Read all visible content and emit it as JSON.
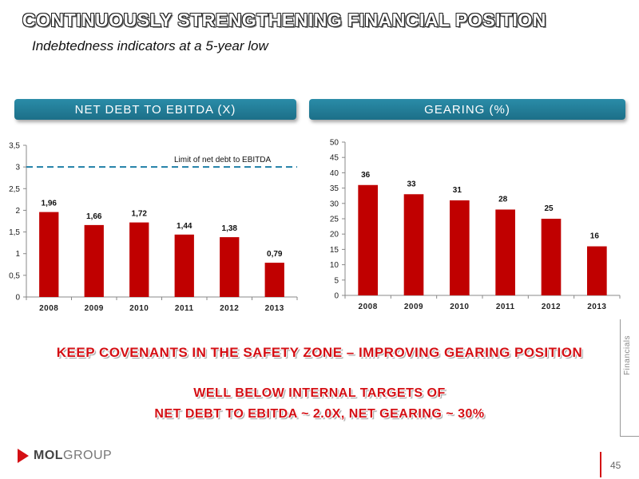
{
  "slide": {
    "title": "CONTINUOUSLY STRENGTHENING FINANCIAL POSITION",
    "subtitle": "Indebtedness indicators at a 5-year low",
    "left_header": "NET DEBT TO EBITDA (X)",
    "right_header": "GEARING (%)",
    "message_1": "KEEP COVENANTS IN THE SAFETY ZONE – IMPROVING GEARING POSITION",
    "message_2": "WELL BELOW INTERNAL TARGETS OF",
    "message_3": "NET DEBT TO EBITDA ~ 2.0X,  NET GEARING ~ 30%",
    "side_label": "Financials",
    "logo_part1": "MOL",
    "logo_part2": "GROUP",
    "page_number": "45"
  },
  "colors": {
    "bar": "#c00000",
    "limit_line": "#1f7fa6",
    "header_bg": "#1c7d99"
  },
  "chart_data": [
    {
      "type": "bar",
      "title": "NET DEBT TO EBITDA (X)",
      "categories": [
        "2008",
        "2009",
        "2010",
        "2011",
        "2012",
        "2013"
      ],
      "values": [
        1.96,
        1.66,
        1.72,
        1.44,
        1.38,
        0.79
      ],
      "value_labels": [
        "1,96",
        "1,66",
        "1,72",
        "1,44",
        "1,38",
        "0,79"
      ],
      "ylim": [
        0,
        3.5
      ],
      "yticks": [
        0,
        0.5,
        1,
        1.5,
        2,
        2.5,
        3,
        3.5
      ],
      "ytick_labels": [
        "0",
        "0,5",
        "1",
        "1,5",
        "2",
        "2,5",
        "3",
        "3,5"
      ],
      "reference_line": {
        "value": 3,
        "label": "Limit of net debt to EBITDA",
        "style": "dashed"
      },
      "grid": false
    },
    {
      "type": "bar",
      "title": "GEARING (%)",
      "categories": [
        "2008",
        "2009",
        "2010",
        "2011",
        "2012",
        "2013"
      ],
      "values": [
        36,
        33,
        31,
        28,
        25,
        16
      ],
      "value_labels": [
        "36",
        "33",
        "31",
        "28",
        "25",
        "16"
      ],
      "ylim": [
        0,
        50
      ],
      "yticks": [
        0,
        5,
        10,
        15,
        20,
        25,
        30,
        35,
        40,
        45,
        50
      ],
      "ytick_labels": [
        "0",
        "5",
        "10",
        "15",
        "20",
        "25",
        "30",
        "35",
        "40",
        "45",
        "50"
      ],
      "grid": false
    }
  ]
}
